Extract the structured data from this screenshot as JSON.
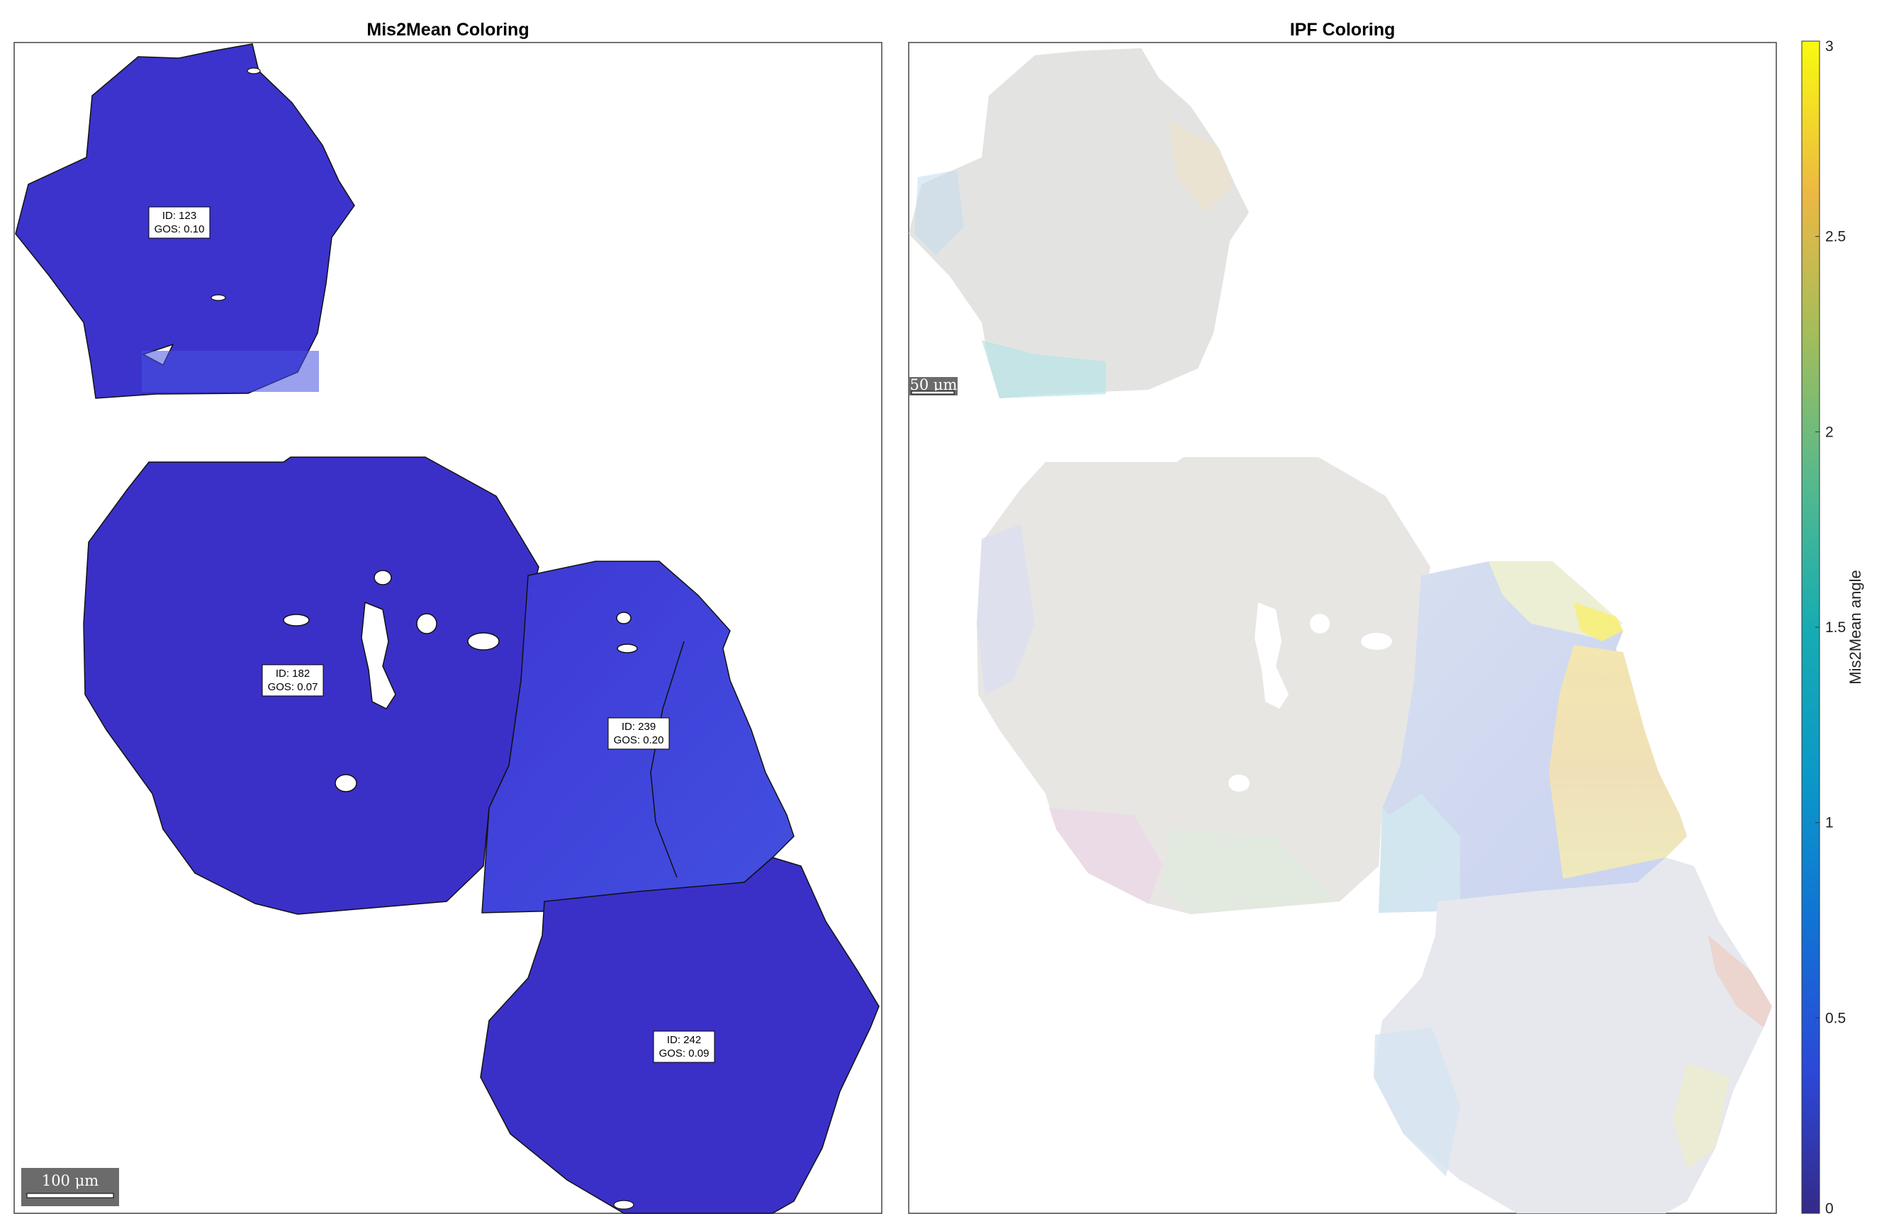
{
  "panels": {
    "left_title": "Mis2Mean Coloring",
    "right_title": "IPF Coloring"
  },
  "grain_labels": [
    {
      "id_text": "ID: 123",
      "gos_text": "GOS: 0.10"
    },
    {
      "id_text": "ID: 182",
      "gos_text": "GOS: 0.07"
    },
    {
      "id_text": "ID: 239",
      "gos_text": "GOS: 0.20"
    },
    {
      "id_text": "ID: 242",
      "gos_text": "GOS: 0.09"
    }
  ],
  "scalebar": {
    "left_text": "100 μm",
    "right_text": "50 μm"
  },
  "colorbar": {
    "label": "Mis2Mean angle",
    "ticks": [
      "0",
      "0.5",
      "1",
      "1.5",
      "2",
      "2.5",
      "3"
    ],
    "range": [
      0,
      3
    ],
    "colormap": "parula"
  },
  "colors": {
    "grain_low": "#3a2fc8",
    "grain_mid": "#3d3bd6",
    "grain_high": "#4a5ae6",
    "ipf_base": "#e6e6e6"
  }
}
